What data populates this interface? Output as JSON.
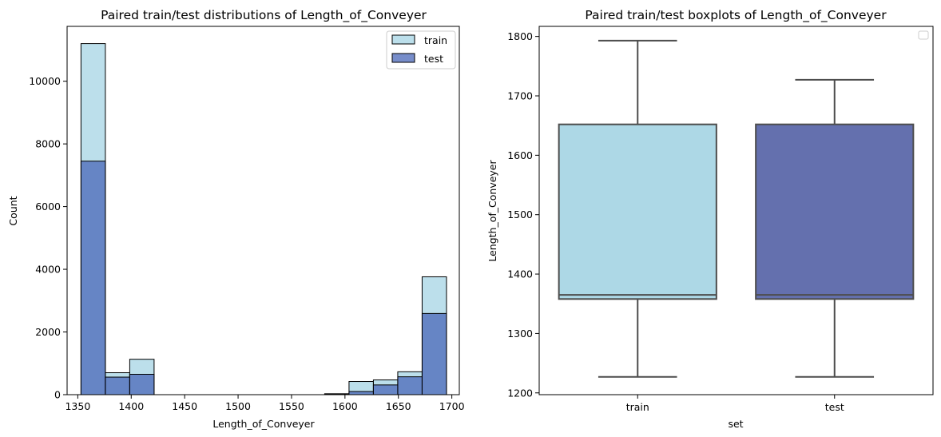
{
  "chart_data": [
    {
      "type": "histogram",
      "title": "Paired train/test distributions of Length_of_Conveyer",
      "xlabel": "Length_of_Conveyer",
      "ylabel": "Count",
      "xlim": [
        1340,
        1707
      ],
      "ylim": [
        0,
        11750
      ],
      "xticks": [
        1350,
        1400,
        1450,
        1500,
        1550,
        1600,
        1650,
        1700
      ],
      "yticks": [
        0,
        2000,
        4000,
        6000,
        8000,
        10000
      ],
      "legend": {
        "placement": "top-right",
        "entries": [
          "train",
          "test"
        ]
      },
      "bin_edges": [
        1353,
        1375.8,
        1398.6,
        1421.4,
        1444.2,
        1467,
        1489.8,
        1512.6,
        1535.4,
        1558.2,
        1581,
        1603.8,
        1626.6,
        1649.4,
        1672.2,
        1695
      ],
      "series": [
        {
          "name": "train",
          "color": "#add8e6",
          "counts": [
            11200,
            700,
            1130,
            0,
            0,
            0,
            0,
            0,
            0,
            0,
            30,
            420,
            470,
            730,
            3760
          ]
        },
        {
          "name": "test",
          "color": "#4a67b8",
          "counts": [
            7450,
            560,
            650,
            0,
            0,
            0,
            0,
            0,
            0,
            0,
            20,
            100,
            310,
            570,
            2590
          ]
        }
      ]
    },
    {
      "type": "boxplot",
      "title": "Paired train/test boxplots of Length_of_Conveyer",
      "xlabel": "set",
      "ylabel": "Length_of_Conveyer",
      "ylim": [
        1197,
        1817
      ],
      "yticks": [
        1200,
        1300,
        1400,
        1500,
        1600,
        1700,
        1800
      ],
      "categories": [
        "train",
        "test"
      ],
      "legend": {
        "placement": "top-right",
        "entries": []
      },
      "boxes": [
        {
          "category": "train",
          "color": "#add8e6",
          "whislo": 1227,
          "q1": 1358,
          "median": 1365,
          "q3": 1652,
          "whishi": 1793
        },
        {
          "category": "test",
          "color": "#6470ae",
          "whislo": 1227,
          "q1": 1358,
          "median": 1365,
          "q3": 1652,
          "whishi": 1727
        }
      ]
    }
  ]
}
